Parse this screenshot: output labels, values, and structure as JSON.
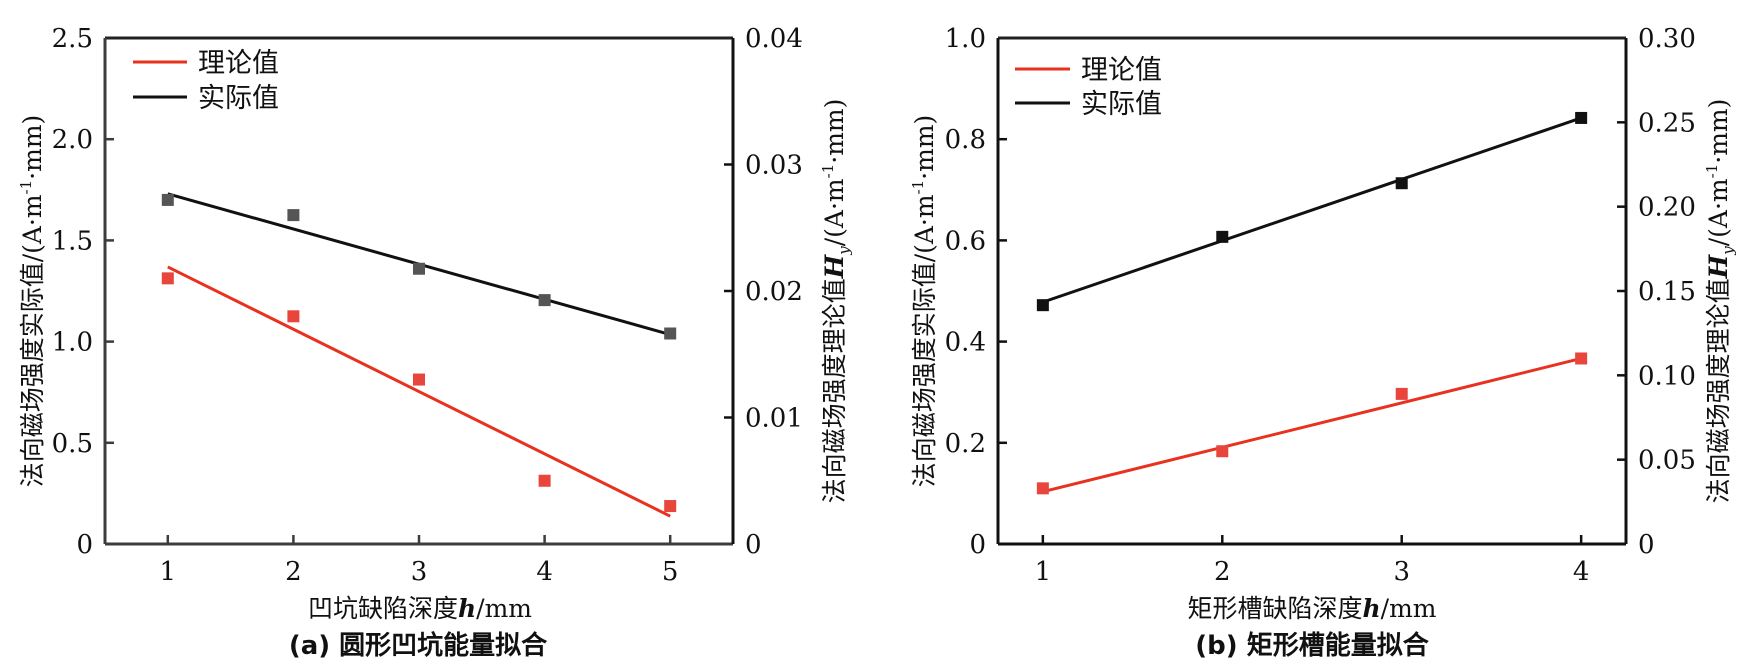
{
  "chart_data": [
    {
      "type": "scatter",
      "panel": "a",
      "title": "(a) 圆形凹坑能量拟合",
      "xlabel": "凹坑缺陷深度h/mm",
      "xlabel_parts": {
        "pre": "凹坑缺陷深度",
        "italic": "h",
        "post": "/mm"
      },
      "ylabel_left": "法向磁场强度实际值/(A·m⁻¹·mm)",
      "ylabel_left_parts": {
        "pre": "法向磁场强度实际值/(A·m",
        "sup": "-1",
        "post": "·mm)"
      },
      "ylabel_right": "法向磁场强度理论值Hy/(A·m⁻¹·mm)",
      "ylabel_right_parts": {
        "pre": "法向磁场强度理论值",
        "italic": "H",
        "sub": "y",
        "mid": "/(A·m",
        "sup": "-1",
        "post": "·mm)"
      },
      "xlim": [
        0.5,
        5.5
      ],
      "ylim_left": [
        0,
        2.5
      ],
      "ylim_right": [
        0,
        0.04
      ],
      "xticks": [
        "1",
        "2",
        "3",
        "4",
        "5"
      ],
      "xtick_values": [
        1,
        2,
        3,
        4,
        5
      ],
      "yticks_left": [
        "0",
        "0.5",
        "1.0",
        "1.5",
        "2.0",
        "2.5"
      ],
      "ytick_left_values": [
        0,
        0.5,
        1.0,
        1.5,
        2.0,
        2.5
      ],
      "yticks_right": [
        "0",
        "0.01",
        "0.02",
        "0.03",
        "0.04"
      ],
      "ytick_right_values": [
        0,
        0.01,
        0.02,
        0.03,
        0.04
      ],
      "legend": {
        "position": "top-left",
        "entries": [
          "理论值",
          "实际值"
        ]
      },
      "grid": false,
      "series": [
        {
          "name": "理论值",
          "axis": "right",
          "color": "#e8321f",
          "marker_color": "#e8453c",
          "x": [
            1,
            2,
            3,
            4,
            5
          ],
          "y": [
            0.021,
            0.018,
            0.013,
            0.005,
            0.003
          ],
          "fit": {
            "x": [
              1,
              5
            ],
            "y": [
              0.0219,
              0.0022
            ]
          }
        },
        {
          "name": "实际值",
          "axis": "left",
          "color": "#111111",
          "marker_color": "#555555",
          "x": [
            1,
            2,
            3,
            4,
            5
          ],
          "y": [
            1.7,
            1.625,
            1.36,
            1.205,
            1.04
          ],
          "fit": {
            "x": [
              1,
              5
            ],
            "y": [
              1.73,
              1.035
            ]
          }
        }
      ]
    },
    {
      "type": "scatter",
      "panel": "b",
      "title": "(b) 矩形槽能量拟合",
      "xlabel": "矩形槽缺陷深度h/mm",
      "xlabel_parts": {
        "pre": "矩形槽缺陷深度",
        "italic": "h",
        "post": "/mm"
      },
      "ylabel_left": "法向磁场强度实际值/(A·m⁻¹·mm)",
      "ylabel_left_parts": {
        "pre": "法向磁场强度实际值/(A·m",
        "sup": "-1",
        "post": "·mm)"
      },
      "ylabel_right": "法向磁场强度理论值Hy/(A·m⁻¹·mm)",
      "ylabel_right_parts": {
        "pre": "法向磁场强度理论值",
        "italic": "H",
        "sub": "y",
        "mid": "/(A·m",
        "sup": "-1",
        "post": "·mm)"
      },
      "xlim": [
        0.75,
        4.25
      ],
      "ylim_left": [
        0,
        1.0
      ],
      "ylim_right": [
        0,
        0.3
      ],
      "xticks": [
        "1",
        "2",
        "3",
        "4"
      ],
      "xtick_values": [
        1,
        2,
        3,
        4
      ],
      "yticks_left": [
        "0",
        "0.2",
        "0.4",
        "0.6",
        "0.8",
        "1.0"
      ],
      "ytick_left_values": [
        0,
        0.2,
        0.4,
        0.6,
        0.8,
        1.0
      ],
      "yticks_right": [
        "0",
        "0.05",
        "0.10",
        "0.15",
        "0.20",
        "0.25",
        "0.30"
      ],
      "ytick_right_values": [
        0,
        0.05,
        0.1,
        0.15,
        0.2,
        0.25,
        0.3
      ],
      "legend": {
        "position": "top-left",
        "entries": [
          "理论值",
          "实际值"
        ]
      },
      "grid": false,
      "series": [
        {
          "name": "理论值",
          "axis": "right",
          "color": "#e8321f",
          "marker_color": "#e8453c",
          "x": [
            1,
            2,
            3,
            4
          ],
          "y": [
            0.033,
            0.055,
            0.089,
            0.11
          ],
          "fit": {
            "x": [
              1,
              4
            ],
            "y": [
              0.031,
              0.11
            ]
          }
        },
        {
          "name": "实际值",
          "axis": "left",
          "color": "#111111",
          "marker_color": "#111111",
          "x": [
            1,
            2,
            3,
            4
          ],
          "y": [
            0.472,
            0.607,
            0.713,
            0.842
          ],
          "fit": {
            "x": [
              1,
              4
            ],
            "y": [
              0.478,
              0.842
            ]
          }
        }
      ]
    }
  ]
}
